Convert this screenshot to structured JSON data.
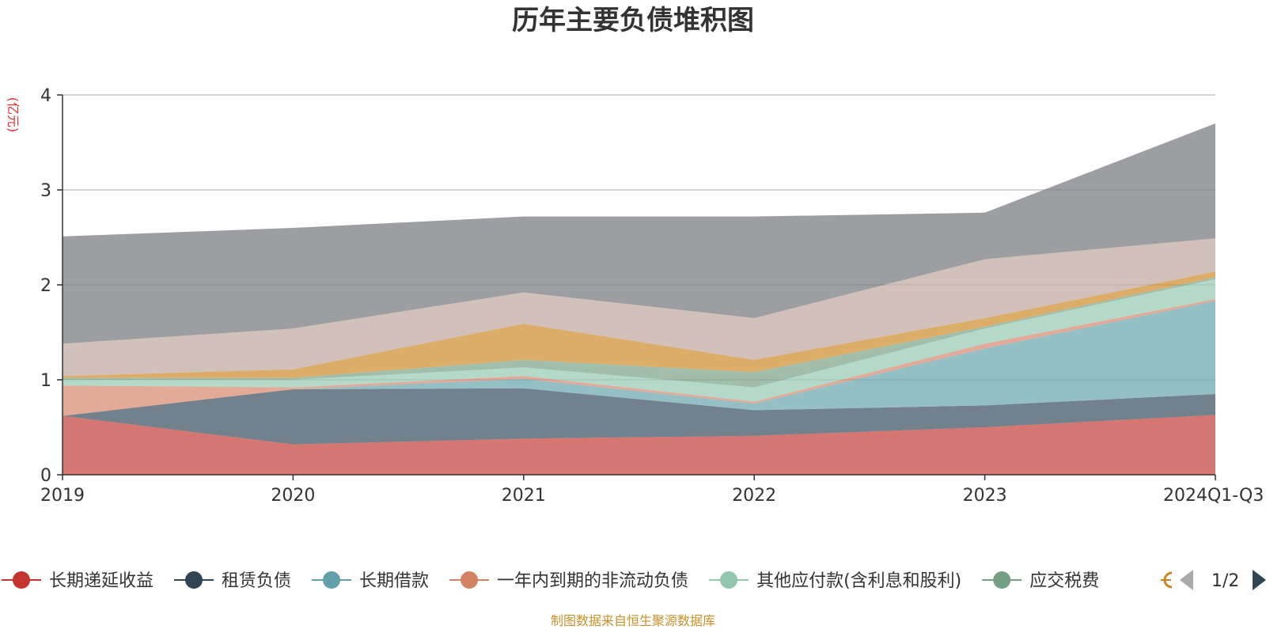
{
  "chart_data": {
    "type": "area",
    "stacked": true,
    "title": "历年主要负债堆积图",
    "unit_label": "(亿元)",
    "categories": [
      "2019",
      "2020",
      "2021",
      "2022",
      "2023",
      "2024Q1-Q3"
    ],
    "ylim": [
      0,
      4
    ],
    "yticks": [
      "0",
      "1",
      "2",
      "3",
      "4"
    ],
    "grid": true,
    "legend_position": "bottom",
    "series": [
      {
        "name": "长期递延收益",
        "color": "#c23531",
        "values": [
          0.62,
          0.32,
          0.38,
          0.41,
          0.5,
          0.63
        ]
      },
      {
        "name": "租赁负债",
        "color": "#2f4554",
        "values": [
          0.0,
          0.58,
          0.53,
          0.27,
          0.23,
          0.22
        ]
      },
      {
        "name": "长期借款",
        "color": "#61a0a8",
        "values": [
          0.0,
          0.0,
          0.1,
          0.07,
          0.6,
          0.98
        ]
      },
      {
        "name": "一年内到期的非流动负债",
        "color": "#d48265",
        "values": [
          0.32,
          0.02,
          0.03,
          0.02,
          0.05,
          0.02
        ]
      },
      {
        "name": "其他应付款(含利息和股利)",
        "color": "#91c7ae",
        "values": [
          0.06,
          0.08,
          0.09,
          0.15,
          0.16,
          0.21
        ]
      },
      {
        "name": "应交税费",
        "color": "#749f83",
        "values": [
          0.02,
          0.02,
          0.08,
          0.16,
          0.02,
          0.02
        ]
      },
      {
        "name": "",
        "color": "#ca8622",
        "values": [
          0.02,
          0.09,
          0.38,
          0.13,
          0.09,
          0.06
        ]
      },
      {
        "name": "",
        "color": "#bda29a",
        "values": [
          0.34,
          0.43,
          0.33,
          0.44,
          0.62,
          0.35
        ]
      },
      {
        "name": "",
        "color": "#6e7074",
        "values": [
          1.13,
          1.06,
          0.8,
          1.07,
          0.49,
          1.21
        ]
      }
    ]
  },
  "legend": {
    "items": [
      {
        "label": "长期递延收益",
        "color": "#c23531"
      },
      {
        "label": "租赁负债",
        "color": "#2f4554"
      },
      {
        "label": "长期借款",
        "color": "#61a0a8"
      },
      {
        "label": "一年内到期的非流动负债",
        "color": "#d48265"
      },
      {
        "label": "其他应付款(含利息和股利)",
        "color": "#91c7ae"
      },
      {
        "label": "应交税费",
        "color": "#749f83"
      }
    ],
    "page": "1/2"
  },
  "footer": {
    "source": "制图数据来自恒生聚源数据库"
  }
}
